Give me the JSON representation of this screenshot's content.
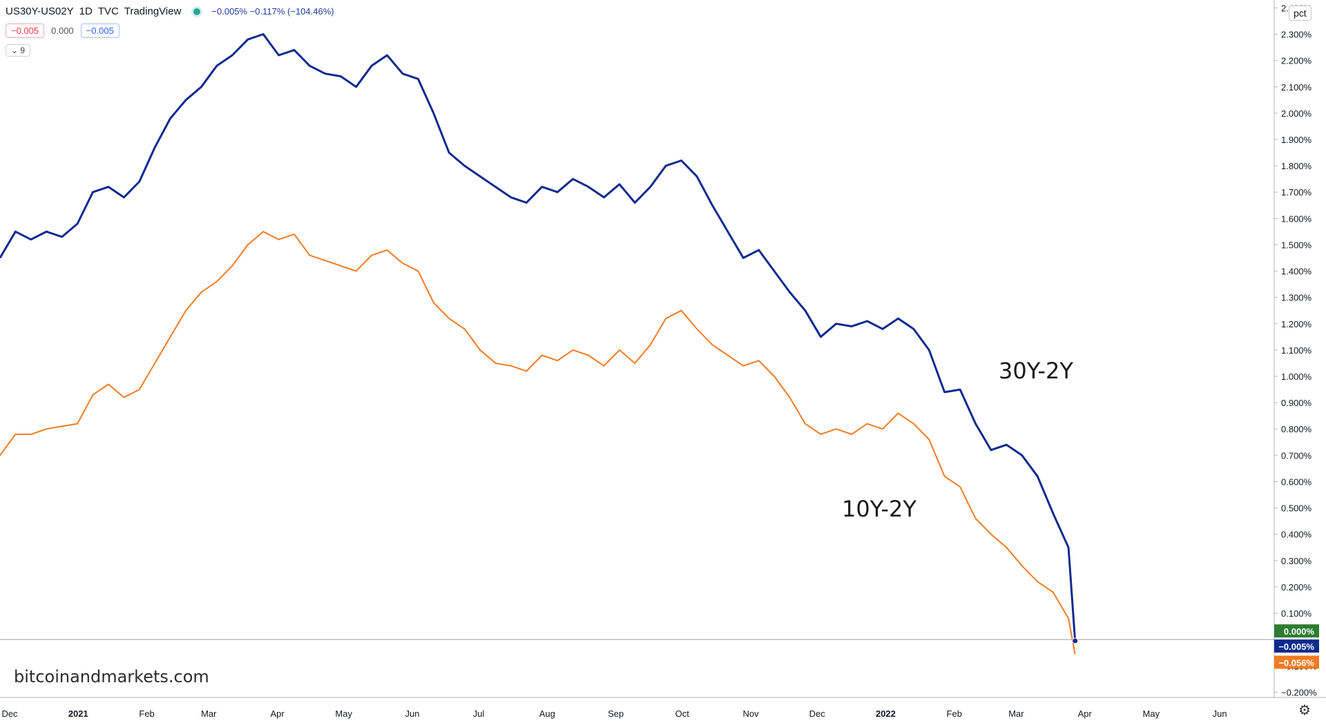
{
  "header": {
    "symbol": "US30Y-US02Y",
    "interval": "1D",
    "source": "TVC",
    "platform": "TradingView",
    "change": "−0.005%  −0.117% (−104.46%)",
    "status_color": "#26a69a"
  },
  "ohlc": {
    "sell": "−0.005",
    "spread": "0.000",
    "buy": "−0.005"
  },
  "collapse": {
    "count": "9"
  },
  "scale_button": "pct",
  "watermark": "bitcoinandmarkets.com",
  "annotations": {
    "label_30y": "30Y-2Y",
    "label_10y": "10Y-2Y"
  },
  "price_badges": {
    "zero": "0.000%",
    "us30": "−0.005%",
    "us10": "−0.056%"
  },
  "colors": {
    "us30": "#0d2a8e",
    "us10": "#f27b20",
    "zero_badge": "#2e7d32"
  },
  "chart_data": {
    "type": "line",
    "x_ticks": [
      "Dec",
      "2021",
      "Feb",
      "Mar",
      "Apr",
      "May",
      "Jun",
      "Jul",
      "Aug",
      "Sep",
      "Oct",
      "Nov",
      "Dec",
      "2022",
      "Feb",
      "Mar",
      "Apr",
      "May",
      "Jun"
    ],
    "y_ticks": [
      "2.400%",
      "2.300%",
      "2.200%",
      "2.100%",
      "2.000%",
      "1.900%",
      "1.800%",
      "1.700%",
      "1.600%",
      "1.500%",
      "1.400%",
      "1.300%",
      "1.200%",
      "1.100%",
      "1.000%",
      "0.900%",
      "0.800%",
      "0.700%",
      "0.600%",
      "0.500%",
      "0.400%",
      "0.300%",
      "0.200%",
      "0.100%",
      "−0.100%",
      "−0.200%"
    ],
    "ylim": [
      -0.22,
      2.43
    ],
    "x_range": [
      "2020-12-01",
      "2022-06-30"
    ],
    "series": [
      {
        "name": "30Y-2Y",
        "x": [
          "2020-12-01",
          "2020-12-08",
          "2020-12-15",
          "2020-12-22",
          "2020-12-29",
          "2021-01-05",
          "2021-01-12",
          "2021-01-19",
          "2021-01-26",
          "2021-02-02",
          "2021-02-09",
          "2021-02-16",
          "2021-02-23",
          "2021-03-02",
          "2021-03-09",
          "2021-03-16",
          "2021-03-23",
          "2021-03-30",
          "2021-04-06",
          "2021-04-13",
          "2021-04-20",
          "2021-04-27",
          "2021-05-04",
          "2021-05-11",
          "2021-05-18",
          "2021-05-25",
          "2021-06-01",
          "2021-06-08",
          "2021-06-15",
          "2021-06-22",
          "2021-06-29",
          "2021-07-06",
          "2021-07-13",
          "2021-07-20",
          "2021-07-27",
          "2021-08-03",
          "2021-08-10",
          "2021-08-17",
          "2021-08-24",
          "2021-08-31",
          "2021-09-07",
          "2021-09-14",
          "2021-09-21",
          "2021-09-28",
          "2021-10-05",
          "2021-10-12",
          "2021-10-19",
          "2021-10-26",
          "2021-11-02",
          "2021-11-09",
          "2021-11-16",
          "2021-11-23",
          "2021-11-30",
          "2021-12-07",
          "2021-12-14",
          "2021-12-21",
          "2021-12-28",
          "2022-01-04",
          "2022-01-11",
          "2022-01-18",
          "2022-01-25",
          "2022-02-01",
          "2022-02-08",
          "2022-02-15",
          "2022-02-22",
          "2022-03-01",
          "2022-03-08",
          "2022-03-15",
          "2022-03-22",
          "2022-03-29",
          "2022-04-01"
        ],
        "values": [
          1.45,
          1.55,
          1.52,
          1.55,
          1.53,
          1.58,
          1.7,
          1.72,
          1.68,
          1.74,
          1.87,
          1.98,
          2.05,
          2.1,
          2.18,
          2.22,
          2.28,
          2.3,
          2.22,
          2.24,
          2.18,
          2.15,
          2.14,
          2.1,
          2.18,
          2.22,
          2.15,
          2.13,
          2.0,
          1.85,
          1.8,
          1.76,
          1.72,
          1.68,
          1.66,
          1.72,
          1.7,
          1.75,
          1.72,
          1.68,
          1.73,
          1.66,
          1.72,
          1.8,
          1.82,
          1.76,
          1.65,
          1.55,
          1.45,
          1.48,
          1.4,
          1.32,
          1.25,
          1.15,
          1.2,
          1.19,
          1.21,
          1.18,
          1.22,
          1.18,
          1.1,
          0.94,
          0.95,
          0.82,
          0.72,
          0.74,
          0.7,
          0.62,
          0.48,
          0.35,
          -0.005
        ]
      },
      {
        "name": "10Y-2Y",
        "x": [
          "2020-12-01",
          "2020-12-08",
          "2020-12-15",
          "2020-12-22",
          "2020-12-29",
          "2021-01-05",
          "2021-01-12",
          "2021-01-19",
          "2021-01-26",
          "2021-02-02",
          "2021-02-09",
          "2021-02-16",
          "2021-02-23",
          "2021-03-02",
          "2021-03-09",
          "2021-03-16",
          "2021-03-23",
          "2021-03-30",
          "2021-04-06",
          "2021-04-13",
          "2021-04-20",
          "2021-04-27",
          "2021-05-04",
          "2021-05-11",
          "2021-05-18",
          "2021-05-25",
          "2021-06-01",
          "2021-06-08",
          "2021-06-15",
          "2021-06-22",
          "2021-06-29",
          "2021-07-06",
          "2021-07-13",
          "2021-07-20",
          "2021-07-27",
          "2021-08-03",
          "2021-08-10",
          "2021-08-17",
          "2021-08-24",
          "2021-08-31",
          "2021-09-07",
          "2021-09-14",
          "2021-09-21",
          "2021-09-28",
          "2021-10-05",
          "2021-10-12",
          "2021-10-19",
          "2021-10-26",
          "2021-11-02",
          "2021-11-09",
          "2021-11-16",
          "2021-11-23",
          "2021-11-30",
          "2021-12-07",
          "2021-12-14",
          "2021-12-21",
          "2021-12-28",
          "2022-01-04",
          "2022-01-11",
          "2022-01-18",
          "2022-01-25",
          "2022-02-01",
          "2022-02-08",
          "2022-02-15",
          "2022-02-22",
          "2022-03-01",
          "2022-03-08",
          "2022-03-15",
          "2022-03-22",
          "2022-03-29",
          "2022-04-01"
        ],
        "values": [
          0.7,
          0.78,
          0.78,
          0.8,
          0.81,
          0.82,
          0.93,
          0.97,
          0.92,
          0.95,
          1.05,
          1.15,
          1.25,
          1.32,
          1.36,
          1.42,
          1.5,
          1.55,
          1.52,
          1.54,
          1.46,
          1.44,
          1.42,
          1.4,
          1.46,
          1.48,
          1.43,
          1.4,
          1.28,
          1.22,
          1.18,
          1.1,
          1.05,
          1.04,
          1.02,
          1.08,
          1.06,
          1.1,
          1.08,
          1.04,
          1.1,
          1.05,
          1.12,
          1.22,
          1.25,
          1.18,
          1.12,
          1.08,
          1.04,
          1.06,
          1.0,
          0.92,
          0.82,
          0.78,
          0.8,
          0.78,
          0.82,
          0.8,
          0.86,
          0.82,
          0.76,
          0.62,
          0.58,
          0.46,
          0.4,
          0.35,
          0.28,
          0.22,
          0.18,
          0.08,
          -0.056
        ]
      }
    ],
    "grid": false,
    "legend": "none"
  }
}
